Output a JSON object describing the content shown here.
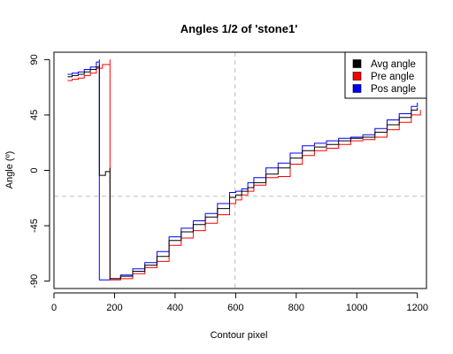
{
  "chart_data": {
    "type": "line",
    "title": "Angles 1/2 of 'stone1'",
    "xlabel": "Contour pixel",
    "ylabel": "Angle (º)",
    "xlim": [
      0,
      1230
    ],
    "ylim": [
      -96,
      96
    ],
    "x_ticks": [
      0,
      200,
      400,
      600,
      800,
      1000,
      1200
    ],
    "y_ticks": [
      -90,
      -45,
      0,
      45,
      90
    ],
    "reference_lines": {
      "vertical_x": 598,
      "horizontal_y": -21
    },
    "legend": {
      "position": "top-right",
      "entries": [
        {
          "label": "Avg angle",
          "color": "#000000"
        },
        {
          "label": "Pre angle",
          "color": "#ff0000"
        },
        {
          "label": "Pos angle",
          "color": "#0000ff"
        }
      ]
    },
    "series": [
      {
        "name": "Avg angle",
        "color": "#000000",
        "points": [
          [
            45,
            76
          ],
          [
            60,
            77
          ],
          [
            80,
            78
          ],
          [
            100,
            80
          ],
          [
            120,
            82
          ],
          [
            140,
            84
          ],
          [
            150,
            86
          ],
          [
            150,
            -4
          ],
          [
            170,
            -1
          ],
          [
            185,
            2
          ],
          [
            185,
            -88
          ],
          [
            220,
            -86
          ],
          [
            260,
            -82
          ],
          [
            300,
            -77
          ],
          [
            340,
            -70
          ],
          [
            380,
            -57
          ],
          [
            420,
            -50
          ],
          [
            460,
            -44
          ],
          [
            500,
            -38
          ],
          [
            540,
            -31
          ],
          [
            580,
            -22
          ],
          [
            600,
            -20
          ],
          [
            620,
            -17
          ],
          [
            640,
            -14
          ],
          [
            660,
            -10
          ],
          [
            700,
            -3
          ],
          [
            740,
            2
          ],
          [
            780,
            10
          ],
          [
            820,
            16
          ],
          [
            860,
            19
          ],
          [
            900,
            21
          ],
          [
            940,
            24
          ],
          [
            980,
            26
          ],
          [
            1020,
            27
          ],
          [
            1060,
            31
          ],
          [
            1100,
            37
          ],
          [
            1140,
            43
          ],
          [
            1180,
            49
          ],
          [
            1200,
            51
          ]
        ]
      },
      {
        "name": "Pre angle",
        "color": "#ff0000",
        "points": [
          [
            45,
            73
          ],
          [
            60,
            74
          ],
          [
            80,
            75
          ],
          [
            100,
            77
          ],
          [
            120,
            79
          ],
          [
            140,
            83
          ],
          [
            160,
            86
          ],
          [
            185,
            90
          ],
          [
            185,
            -89
          ],
          [
            220,
            -88
          ],
          [
            260,
            -84
          ],
          [
            300,
            -79
          ],
          [
            340,
            -74
          ],
          [
            380,
            -61
          ],
          [
            420,
            -55
          ],
          [
            460,
            -49
          ],
          [
            500,
            -43
          ],
          [
            540,
            -36
          ],
          [
            580,
            -27
          ],
          [
            600,
            -24
          ],
          [
            620,
            -20
          ],
          [
            640,
            -17
          ],
          [
            660,
            -12
          ],
          [
            700,
            -6
          ],
          [
            740,
            -5
          ],
          [
            780,
            5
          ],
          [
            820,
            12
          ],
          [
            860,
            16
          ],
          [
            900,
            18
          ],
          [
            940,
            21
          ],
          [
            980,
            24
          ],
          [
            1020,
            25
          ],
          [
            1060,
            27
          ],
          [
            1100,
            33
          ],
          [
            1140,
            39
          ],
          [
            1180,
            45
          ],
          [
            1210,
            49
          ]
        ]
      },
      {
        "name": "Pos angle",
        "color": "#0000ff",
        "points": [
          [
            45,
            78
          ],
          [
            60,
            79
          ],
          [
            80,
            80
          ],
          [
            100,
            82
          ],
          [
            120,
            84
          ],
          [
            140,
            88
          ],
          [
            150,
            90
          ],
          [
            150,
            -89
          ],
          [
            185,
            -88
          ],
          [
            220,
            -85
          ],
          [
            260,
            -80
          ],
          [
            300,
            -75
          ],
          [
            340,
            -66
          ],
          [
            380,
            -54
          ],
          [
            420,
            -47
          ],
          [
            460,
            -41
          ],
          [
            500,
            -35
          ],
          [
            540,
            -27
          ],
          [
            580,
            -18
          ],
          [
            600,
            -17
          ],
          [
            620,
            -15
          ],
          [
            640,
            -10
          ],
          [
            660,
            -6
          ],
          [
            700,
            2
          ],
          [
            740,
            6
          ],
          [
            780,
            14
          ],
          [
            820,
            20
          ],
          [
            860,
            22
          ],
          [
            900,
            24
          ],
          [
            940,
            26
          ],
          [
            980,
            27
          ],
          [
            1020,
            29
          ],
          [
            1060,
            34
          ],
          [
            1100,
            41
          ],
          [
            1140,
            46
          ],
          [
            1180,
            52
          ],
          [
            1200,
            55
          ]
        ]
      }
    ]
  }
}
